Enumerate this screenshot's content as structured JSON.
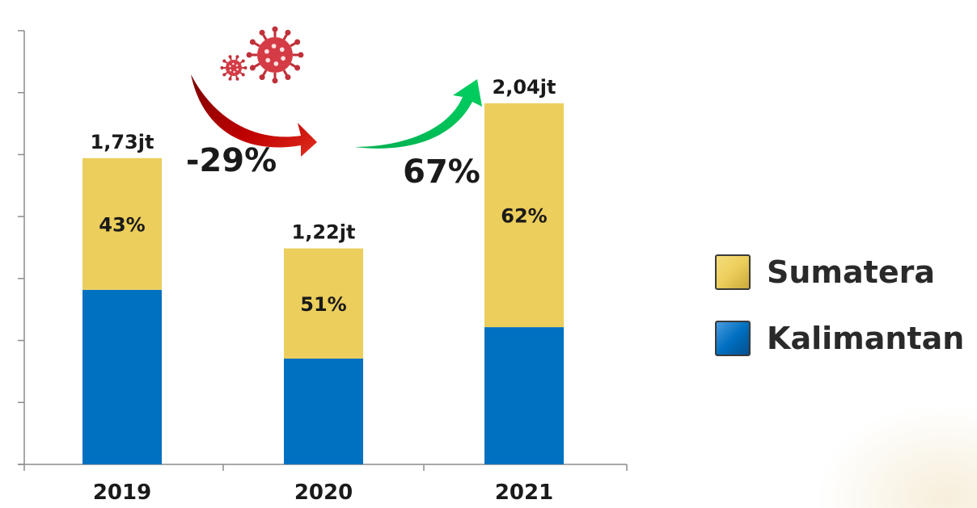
{
  "chart_data": {
    "type": "bar",
    "stacked": true,
    "categories": [
      "2019",
      "2020",
      "2021"
    ],
    "series": [
      {
        "name": "Kalimantan",
        "color": "#0070C0",
        "values": [
          0.9861,
          0.5978,
          0.7752
        ]
      },
      {
        "name": "Sumatera",
        "color": "#ECCE5C",
        "values": [
          0.7439,
          0.6222,
          1.2648
        ]
      }
    ],
    "total_labels": [
      "1,73jt",
      "1,22jt",
      "2,04jt"
    ],
    "segment_labels": [
      "43%",
      "51%",
      "62%"
    ],
    "ylim": [
      0,
      2.45
    ],
    "grid": false,
    "legend_position": "right",
    "changes": [
      {
        "label": "-29%",
        "from": "2019",
        "to": "2020",
        "color": "#C00000"
      },
      {
        "label": "67%",
        "from": "2020",
        "to": "2021",
        "color": "#00B050"
      }
    ],
    "virus_icon": "virus-icon"
  }
}
